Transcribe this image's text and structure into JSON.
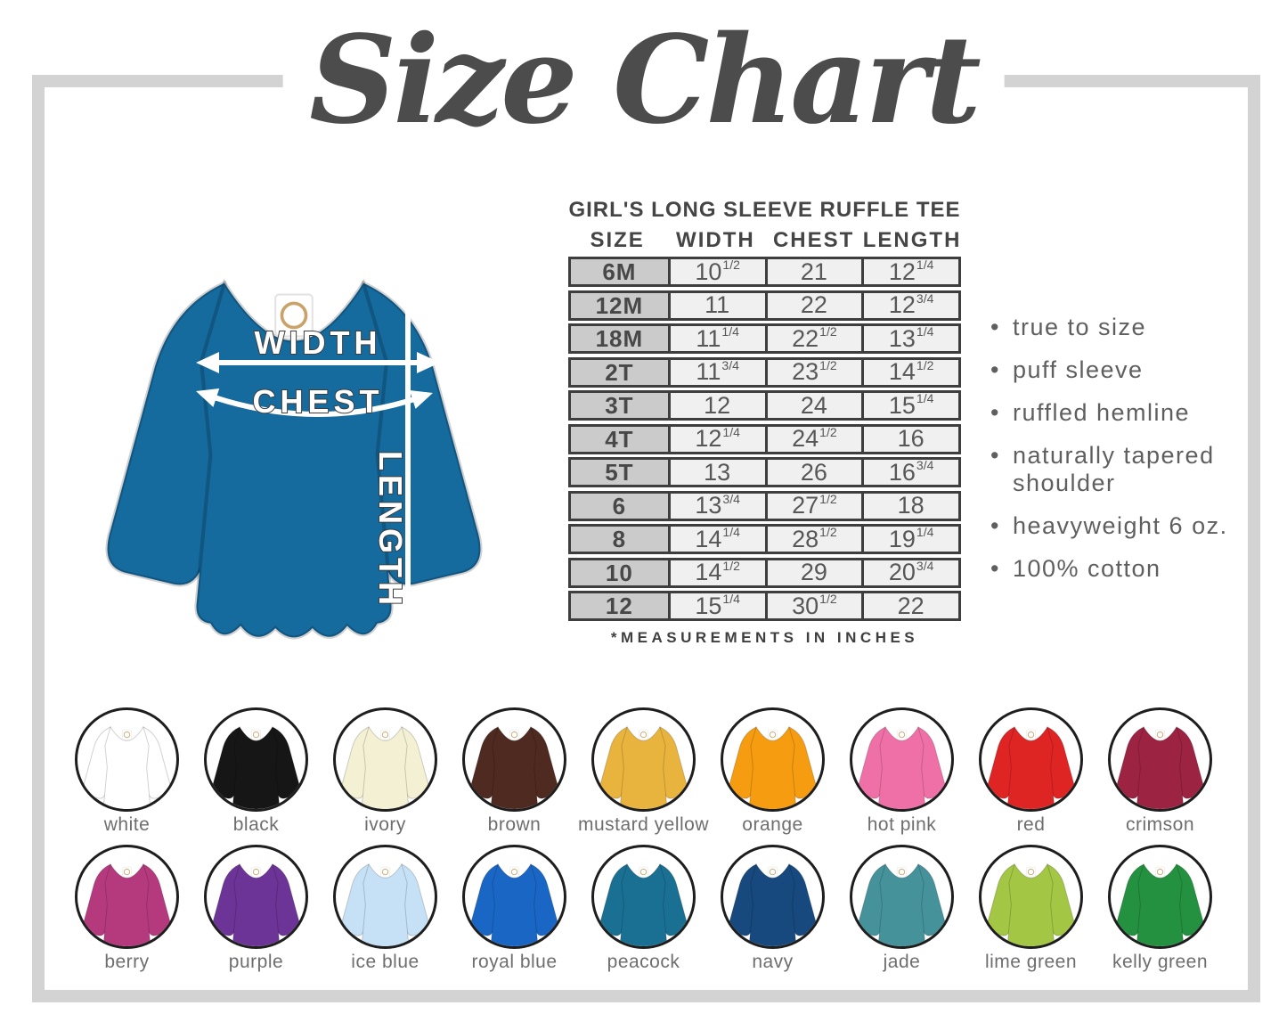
{
  "page_title": "Size Chart",
  "frame_color": "#d3d3d3",
  "table": {
    "title": "GIRL'S LONG SLEEVE RUFFLE TEE",
    "columns": [
      "SIZE",
      "WIDTH",
      "CHEST",
      "LENGTH"
    ],
    "rows": [
      {
        "size": "6M",
        "width": "10",
        "width_frac": "1/2",
        "chest": "21",
        "chest_frac": "",
        "length": "12",
        "length_frac": "1/4"
      },
      {
        "size": "12M",
        "width": "11",
        "width_frac": "",
        "chest": "22",
        "chest_frac": "",
        "length": "12",
        "length_frac": "3/4"
      },
      {
        "size": "18M",
        "width": "11",
        "width_frac": "1/4",
        "chest": "22",
        "chest_frac": "1/2",
        "length": "13",
        "length_frac": "1/4"
      },
      {
        "size": "2T",
        "width": "11",
        "width_frac": "3/4",
        "chest": "23",
        "chest_frac": "1/2",
        "length": "14",
        "length_frac": "1/2"
      },
      {
        "size": "3T",
        "width": "12",
        "width_frac": "",
        "chest": "24",
        "chest_frac": "",
        "length": "15",
        "length_frac": "1/4"
      },
      {
        "size": "4T",
        "width": "12",
        "width_frac": "1/4",
        "chest": "24",
        "chest_frac": "1/2",
        "length": "16",
        "length_frac": ""
      },
      {
        "size": "5T",
        "width": "13",
        "width_frac": "",
        "chest": "26",
        "chest_frac": "",
        "length": "16",
        "length_frac": "3/4"
      },
      {
        "size": "6",
        "width": "13",
        "width_frac": "3/4",
        "chest": "27",
        "chest_frac": "1/2",
        "length": "18",
        "length_frac": ""
      },
      {
        "size": "8",
        "width": "14",
        "width_frac": "1/4",
        "chest": "28",
        "chest_frac": "1/2",
        "length": "19",
        "length_frac": "1/4"
      },
      {
        "size": "10",
        "width": "14",
        "width_frac": "1/2",
        "chest": "29",
        "chest_frac": "",
        "length": "20",
        "length_frac": "3/4"
      },
      {
        "size": "12",
        "width": "15",
        "width_frac": "1/4",
        "chest": "30",
        "chest_frac": "1/2",
        "length": "22",
        "length_frac": ""
      }
    ],
    "note": "*MEASUREMENTS IN INCHES"
  },
  "diagram": {
    "shirt_color": "#156a9e",
    "width_label": "WIDTH",
    "chest_label": "CHEST",
    "length_label": "LENGTH"
  },
  "features": [
    "true to size",
    "puff sleeve",
    "ruffled hemline",
    "naturally tapered shoulder",
    "heavyweight 6 oz.",
    "100% cotton"
  ],
  "swatch_rows": [
    [
      {
        "label": "white",
        "color": "#ffffff"
      },
      {
        "label": "black",
        "color": "#161616"
      },
      {
        "label": "ivory",
        "color": "#f3f0d3"
      },
      {
        "label": "brown",
        "color": "#4e2a21"
      },
      {
        "label": "mustard yellow",
        "color": "#e9b43e"
      },
      {
        "label": "orange",
        "color": "#f59c10"
      },
      {
        "label": "hot pink",
        "color": "#ef70a6"
      },
      {
        "label": "red",
        "color": "#df2424"
      },
      {
        "label": "crimson",
        "color": "#9d2342"
      }
    ],
    [
      {
        "label": "berry",
        "color": "#b43a7d"
      },
      {
        "label": "purple",
        "color": "#6c3496"
      },
      {
        "label": "ice blue",
        "color": "#c6e1f6"
      },
      {
        "label": "royal blue",
        "color": "#1a66c5"
      },
      {
        "label": "peacock",
        "color": "#1a7092"
      },
      {
        "label": "navy",
        "color": "#17497e"
      },
      {
        "label": "jade",
        "color": "#45929b"
      },
      {
        "label": "lime green",
        "color": "#a3c644"
      },
      {
        "label": "kelly green",
        "color": "#23913f"
      }
    ]
  ]
}
